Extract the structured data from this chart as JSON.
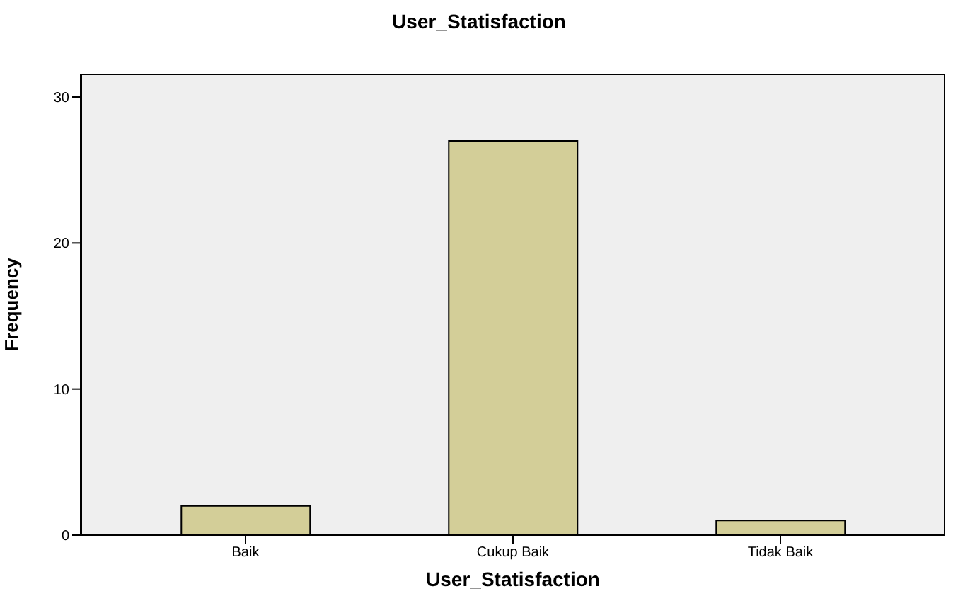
{
  "chart_data": {
    "type": "bar",
    "title": "User_Statisfaction",
    "xlabel": "User_Statisfaction",
    "ylabel": "Frequency",
    "categories": [
      "Baik",
      "Cukup Baik",
      "Tidak Baik"
    ],
    "values": [
      2,
      27,
      1
    ],
    "color": "#d3ce98",
    "ylim": [
      0,
      31.6
    ],
    "yticks": [
      0,
      10,
      20,
      30
    ],
    "grid": false,
    "legend": false
  }
}
